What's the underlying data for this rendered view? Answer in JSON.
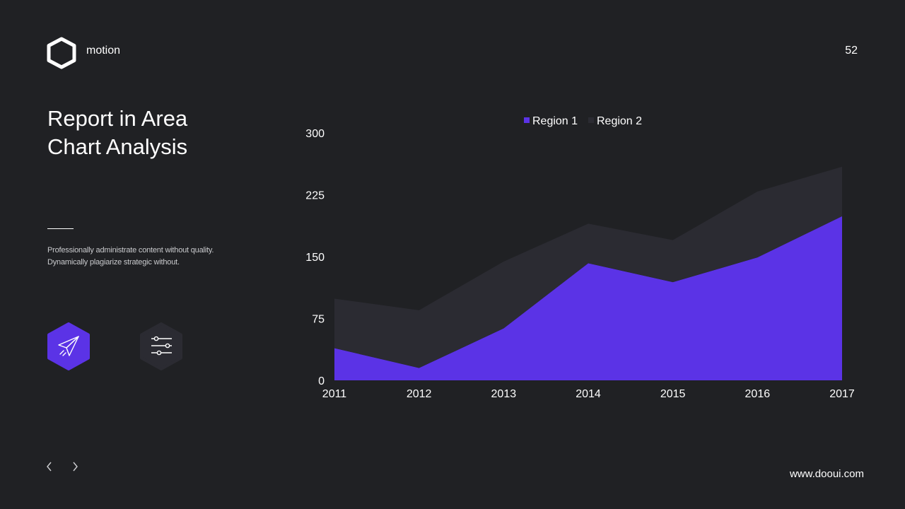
{
  "header": {
    "brand": "motion",
    "page_number": "52"
  },
  "title_lines": [
    "Report in Area",
    "Chart Analysis"
  ],
  "description_lines": [
    "Professionally administrate content without quality.",
    "Dynamically plagiarize strategic without."
  ],
  "icons": {
    "logo": "hexagon-logo-icon",
    "primary_action": "paper-plane-icon",
    "secondary_action": "sliders-icon",
    "prev": "chevron-left-icon",
    "next": "chevron-right-icon"
  },
  "colors": {
    "background": "#202124",
    "accent": "#5b33e6",
    "secondary": "#2b2b32"
  },
  "footer": {
    "website": "www.dooui.com"
  },
  "chart_data": {
    "type": "area",
    "stacked": true,
    "title": "",
    "xlabel": "",
    "ylabel": "",
    "x": [
      "2011",
      "2012",
      "2013",
      "2014",
      "2015",
      "2016",
      "2017"
    ],
    "ylim": [
      0,
      300
    ],
    "yticks": [
      0,
      75,
      150,
      225,
      300
    ],
    "grid": false,
    "legend_position": "top",
    "series": [
      {
        "name": "Region 1",
        "color": "#5b33e6",
        "values": [
          39,
          15,
          63,
          142,
          119,
          149,
          199
        ]
      },
      {
        "name": "Region 2",
        "color": "#2b2b32",
        "values": [
          60,
          70,
          81,
          48,
          51,
          80,
          60
        ]
      }
    ]
  }
}
